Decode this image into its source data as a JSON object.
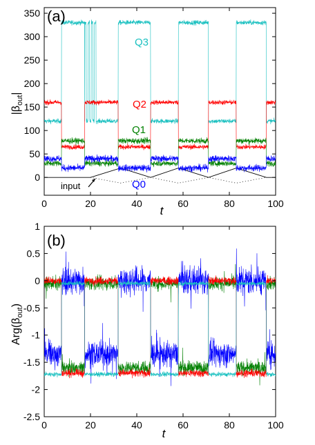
{
  "chart_data": [
    {
      "panel_label": "(a)",
      "type": "line",
      "xlabel": "t",
      "ylabel": "|β_out|",
      "ylabel_main": "|β",
      "ylabel_sub": "out",
      "ylabel_end": "|",
      "xlim": [
        0,
        100
      ],
      "ylim": [
        -38,
        362
      ],
      "xticks": [
        "0",
        "20",
        "40",
        "60",
        "80",
        "100"
      ],
      "yticks": [
        "0",
        "50",
        "100",
        "150",
        "200",
        "250",
        "300",
        "350"
      ],
      "grid": false,
      "legend": "inline",
      "segments": [
        {
          "from": 0,
          "to": 7.5,
          "state": "A"
        },
        {
          "from": 7.5,
          "to": 17.5,
          "state": "B"
        },
        {
          "from": 17.5,
          "to": 32,
          "state": "A"
        },
        {
          "from": 32,
          "to": 46,
          "state": "B"
        },
        {
          "from": 46,
          "to": 58,
          "state": "A"
        },
        {
          "from": 58,
          "to": 71,
          "state": "B"
        },
        {
          "from": 71,
          "to": 83,
          "state": "A"
        },
        {
          "from": 83,
          "to": 96,
          "state": "B"
        },
        {
          "from": 96,
          "to": 100,
          "state": "A"
        }
      ],
      "series": [
        {
          "name": "Q3",
          "color": "#1ac0c0",
          "level_A": 120,
          "level_B": 330,
          "noise": 5,
          "glitch": true
        },
        {
          "name": "Q2",
          "color": "#ff0000",
          "level_A": 160,
          "level_B": 65,
          "noise": 5
        },
        {
          "name": "Q1",
          "color": "#008000",
          "level_A": 30,
          "level_B": 78,
          "noise": 6
        },
        {
          "name": "Q0",
          "color": "#0000ff",
          "level_A": 40,
          "level_B": 20,
          "noise": 7
        }
      ],
      "annotation": {
        "text": "input",
        "points": [
          [
            0,
            0
          ],
          [
            20,
            0
          ],
          [
            33,
            20
          ],
          [
            46,
            0
          ],
          [
            58,
            20
          ],
          [
            71,
            0
          ],
          [
            83,
            20
          ],
          [
            96,
            0
          ],
          [
            100,
            0
          ]
        ],
        "dotted_points": [
          [
            20,
            0
          ],
          [
            33,
            -12
          ],
          [
            46,
            0
          ],
          [
            58,
            -12
          ],
          [
            71,
            0
          ],
          [
            83,
            -12
          ],
          [
            96,
            0
          ]
        ]
      }
    },
    {
      "panel_label": "(b)",
      "type": "line",
      "xlabel": "t",
      "ylabel": "Arg(β_out)",
      "ylabel_main": "Arg(β",
      "ylabel_sub": "out",
      "ylabel_end": ")",
      "xlim": [
        0,
        100
      ],
      "ylim": [
        -2.5,
        1
      ],
      "xticks": [
        "0",
        "20",
        "40",
        "60",
        "80",
        "100"
      ],
      "yticks": [
        "-2.5",
        "-2",
        "-1.5",
        "-1",
        "-0.5",
        "0",
        "0.5",
        "1"
      ],
      "grid": false,
      "legend": "none",
      "series": [
        {
          "name": "",
          "color": "#008000",
          "level_A": -0.05,
          "level_B": -1.6,
          "noise": 0.12
        },
        {
          "name": "",
          "color": "#0000ff",
          "level_A": -1.35,
          "level_B": 0.0,
          "noise": 0.25
        },
        {
          "name": "",
          "color": "#ff0000",
          "level_A": 0.0,
          "level_B": -1.7,
          "noise": 0.07
        },
        {
          "name": "",
          "color": "#1ac0c0",
          "level_A": -1.72,
          "level_B": -0.05,
          "noise": 0.04
        }
      ]
    }
  ]
}
